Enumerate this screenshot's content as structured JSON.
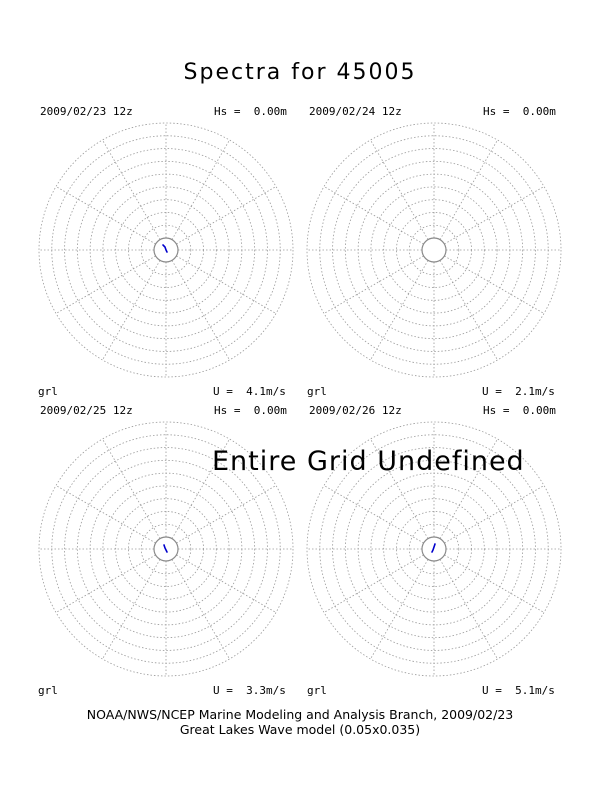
{
  "title": "Spectra for 45005",
  "overlay_message": "Entire Grid Undefined",
  "footer": {
    "line1": "NOAA/NWS/NCEP Marine Modeling and Analysis Branch, 2009/02/23",
    "line2": "Great Lakes Wave model (0.05x0.035)"
  },
  "colors": {
    "grid": "#9a9a9a",
    "spectrum": "#0000cc"
  },
  "chart_data": [
    {
      "type": "polar",
      "datetime": "2009/02/23 12z",
      "hs": "Hs =  0.00m",
      "grid_label": "grl",
      "wind": "U =  4.1m/s",
      "spectrum_present": true
    },
    {
      "type": "polar",
      "datetime": "2009/02/24 12z",
      "hs": "Hs =  0.00m",
      "grid_label": "grl",
      "wind": "U =  2.1m/s",
      "spectrum_present": false
    },
    {
      "type": "polar",
      "datetime": "2009/02/25 12z",
      "hs": "Hs =  0.00m",
      "grid_label": "grl",
      "wind": "U =  3.3m/s",
      "spectrum_present": true
    },
    {
      "type": "polar",
      "datetime": "2009/02/26 12z",
      "hs": "Hs =  0.00m",
      "grid_label": "grl",
      "wind": "U =  5.1m/s",
      "spectrum_present": true
    }
  ]
}
